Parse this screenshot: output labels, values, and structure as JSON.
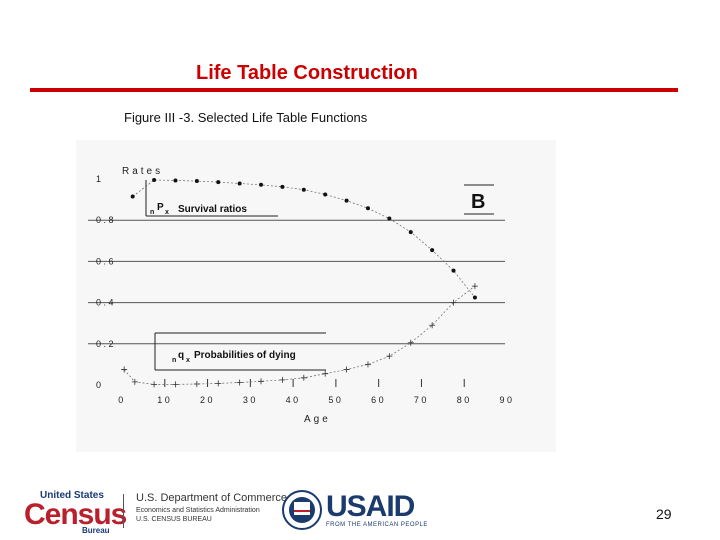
{
  "slide": {
    "title": "Life Table Construction",
    "page_number": "29",
    "accent_color": "#cc0000"
  },
  "chart_data": {
    "type": "line",
    "title": "Figure III -3. Selected Life Table Functions",
    "panel_label": "B",
    "ylabel": "Rates",
    "xlabel": "Age",
    "xlim": [
      0,
      90
    ],
    "ylim": [
      0,
      1
    ],
    "x_ticks": [
      "0",
      "10",
      "20",
      "30",
      "40",
      "50",
      "60",
      "70",
      "80",
      "90"
    ],
    "y_ticks": [
      "0",
      "0.2",
      "0.4",
      "0.6",
      "0.8",
      "1"
    ],
    "grid": "horizontal",
    "series": [
      {
        "name": "Survival ratios",
        "label_prefix": "n",
        "label_symbol": "P",
        "label_suffix": "x",
        "marker": "dot",
        "points": [
          [
            2.5,
            0.915
          ],
          [
            7.5,
            0.995
          ],
          [
            12.5,
            0.993
          ],
          [
            17.5,
            0.99
          ],
          [
            22.5,
            0.985
          ],
          [
            27.5,
            0.978
          ],
          [
            32.5,
            0.972
          ],
          [
            37.5,
            0.962
          ],
          [
            42.5,
            0.948
          ],
          [
            47.5,
            0.925
          ],
          [
            52.5,
            0.895
          ],
          [
            57.5,
            0.858
          ],
          [
            62.5,
            0.808
          ],
          [
            67.5,
            0.742
          ],
          [
            72.5,
            0.655
          ],
          [
            77.5,
            0.555
          ],
          [
            82.5,
            0.425
          ]
        ]
      },
      {
        "name": "Probabilities of dying",
        "label_prefix": "n",
        "label_symbol": "q",
        "label_suffix": "x",
        "marker": "plus",
        "points": [
          [
            0.5,
            0.075
          ],
          [
            3,
            0.015
          ],
          [
            7.5,
            0.003
          ],
          [
            12.5,
            0.003
          ],
          [
            17.5,
            0.005
          ],
          [
            22.5,
            0.008
          ],
          [
            27.5,
            0.012
          ],
          [
            32.5,
            0.018
          ],
          [
            37.5,
            0.025
          ],
          [
            42.5,
            0.035
          ],
          [
            47.5,
            0.055
          ],
          [
            52.5,
            0.075
          ],
          [
            57.5,
            0.1
          ],
          [
            62.5,
            0.14
          ],
          [
            67.5,
            0.205
          ],
          [
            72.5,
            0.29
          ],
          [
            77.5,
            0.4
          ],
          [
            82.5,
            0.48
          ]
        ]
      }
    ]
  },
  "footer": {
    "census_top": "United States",
    "census_word": "Census",
    "census_bureau": "Bureau",
    "doc_line1": "U.S. Department of Commerce",
    "doc_line2": "Economics and Statistics Administration",
    "doc_line3": "U.S. CENSUS BUREAU",
    "usaid_word": "USAID",
    "usaid_sub": "FROM THE AMERICAN PEOPLE"
  }
}
